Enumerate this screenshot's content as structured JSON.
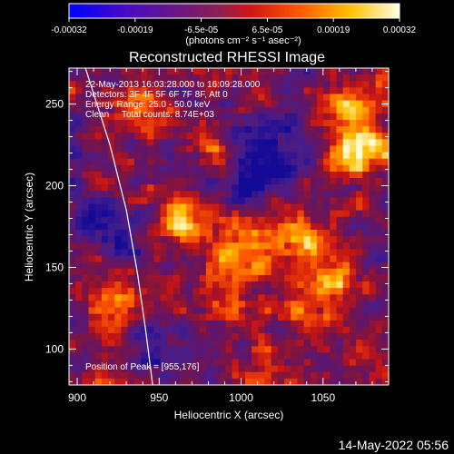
{
  "chart_data": {
    "type": "heatmap",
    "title": "Reconstructed RHESSI Image",
    "xlabel": "Heliocentric X (arcsec)",
    "ylabel": "Heliocentric Y (arcsec)",
    "xlim": [
      895,
      1090
    ],
    "ylim": [
      78,
      272
    ],
    "x_ticks": [
      900,
      950,
      1000,
      1050
    ],
    "y_ticks": [
      100,
      150,
      200,
      250
    ],
    "colorbar": {
      "ticks": [
        "-0.00032",
        "-0.00019",
        "-6.5e-05",
        "6.5e-05",
        "0.00019",
        "0.00032"
      ],
      "label": "(photons cm⁻² s⁻¹ asec⁻²)",
      "range": [
        -0.00032,
        0.00032
      ]
    },
    "annotations": [
      "22-May-2013 16:03:28.000 to 16:09:28.000",
      "Detectors: 3F 4F 5F 6F 7F 8F, Att 0",
      "Energy Range: 25.0 - 50.0 keV",
      "Clean     Total counts: 8.74E+03"
    ],
    "peak_label": "Position of Peak = [955,176]",
    "peak_position": [
      955,
      176
    ],
    "limb_curve": [
      [
        905,
        272
      ],
      [
        920,
        225
      ],
      [
        930,
        185
      ],
      [
        937,
        145
      ],
      [
        942,
        110
      ],
      [
        946,
        78
      ]
    ],
    "grid_cols": 49,
    "grid_rows": 49,
    "blobs": [
      {
        "x": 965,
        "y": 178,
        "amp": 0.95,
        "sigma": 10
      },
      {
        "x": 1000,
        "y": 160,
        "amp": 0.75,
        "sigma": 14
      },
      {
        "x": 1070,
        "y": 220,
        "amp": 1.0,
        "sigma": 12
      },
      {
        "x": 1068,
        "y": 250,
        "amp": 0.9,
        "sigma": 10
      },
      {
        "x": 1035,
        "y": 165,
        "amp": 0.7,
        "sigma": 12
      },
      {
        "x": 1055,
        "y": 145,
        "amp": 0.65,
        "sigma": 12
      },
      {
        "x": 935,
        "y": 250,
        "amp": 0.55,
        "sigma": 10
      },
      {
        "x": 990,
        "y": 125,
        "amp": 0.6,
        "sigma": 10
      },
      {
        "x": 1040,
        "y": 120,
        "amp": 0.5,
        "sigma": 10
      },
      {
        "x": 920,
        "y": 130,
        "amp": 0.5,
        "sigma": 10
      },
      {
        "x": 1080,
        "y": 100,
        "amp": 0.45,
        "sigma": 10
      },
      {
        "x": 985,
        "y": 220,
        "amp": 0.5,
        "sigma": 10
      },
      {
        "x": 1015,
        "y": 95,
        "amp": 0.4,
        "sigma": 10
      }
    ],
    "cold_regions": [
      {
        "x": 1010,
        "y": 215,
        "amp": -0.7,
        "sigma": 18
      },
      {
        "x": 915,
        "y": 175,
        "amp": -0.6,
        "sigma": 14
      },
      {
        "x": 955,
        "y": 100,
        "amp": -0.4,
        "sigma": 12
      }
    ],
    "noise_seed": 7
  },
  "timestamp": "14-May-2022 05:56"
}
